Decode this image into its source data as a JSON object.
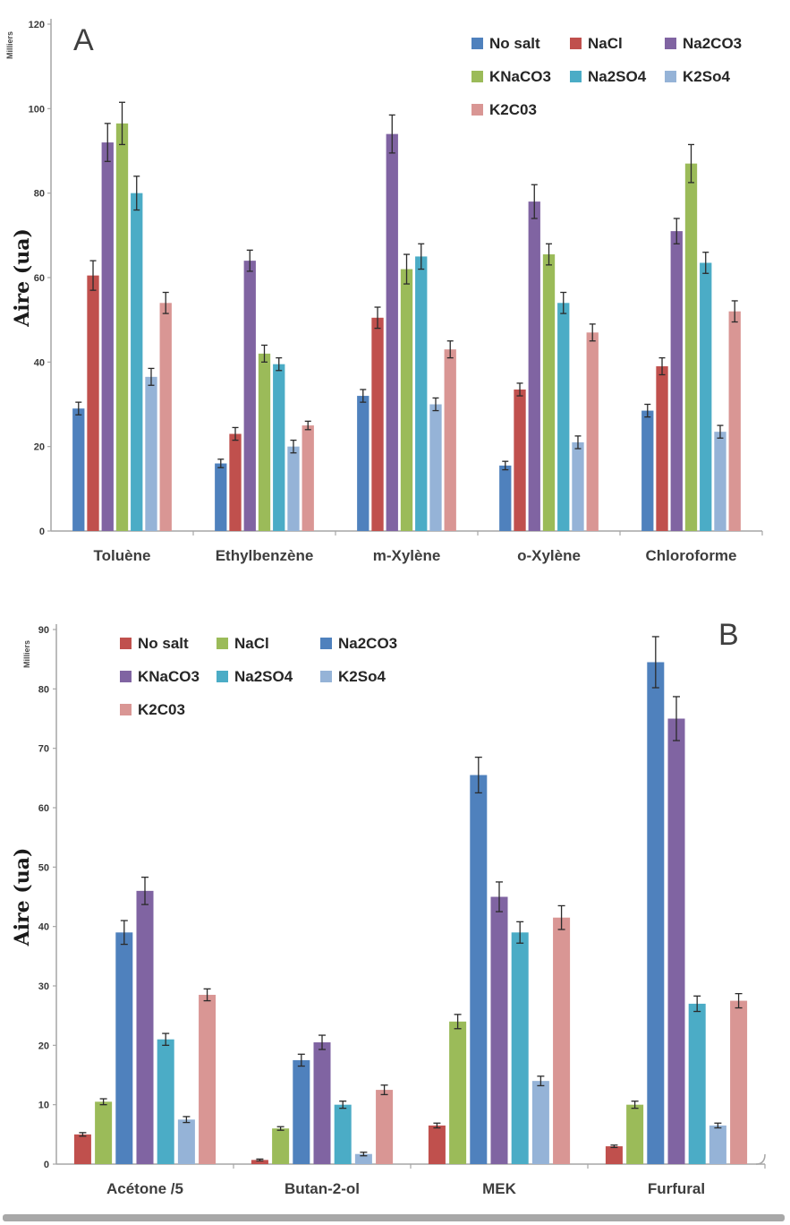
{
  "figure": {
    "panel_a_label": "A",
    "panel_b_label": "B",
    "bottom_bar_color": "#a8a8a8"
  },
  "chart_data": [
    {
      "type": "bar",
      "panel_label": "A",
      "title": "",
      "ylabel": "Aire (ua)",
      "y_units_label": "Milliers",
      "xlabel": "",
      "ylim": [
        0,
        120
      ],
      "ytick_step": 20,
      "grid": false,
      "error_bars": true,
      "legend_position": "top-right",
      "categories": [
        "Toluène",
        "Ethylbenzène",
        "m-Xylène",
        "o-Xylène",
        "Chloroforme"
      ],
      "series": [
        {
          "name": "No salt",
          "color": "#4F81BD",
          "values": [
            29,
            16,
            32,
            15.5,
            28.5
          ],
          "errors": [
            1.5,
            1,
            1.5,
            1,
            1.5
          ]
        },
        {
          "name": "NaCl",
          "color": "#C0504D",
          "values": [
            60.5,
            23,
            50.5,
            33.5,
            39
          ],
          "errors": [
            3.5,
            1.5,
            2.5,
            1.5,
            2
          ]
        },
        {
          "name": "Na2CO3",
          "color": "#8064A2",
          "values": [
            92,
            64,
            94,
            78,
            71
          ],
          "errors": [
            4.5,
            2.5,
            4.5,
            4,
            3
          ]
        },
        {
          "name": "KNaCO3",
          "color": "#9BBB59",
          "values": [
            96.5,
            42,
            62,
            65.5,
            87
          ],
          "errors": [
            5,
            2,
            3.5,
            2.5,
            4.5
          ]
        },
        {
          "name": "Na2SO4",
          "color": "#4BACC6",
          "values": [
            80,
            39.5,
            65,
            54,
            63.5
          ],
          "errors": [
            4,
            1.5,
            3,
            2.5,
            2.5
          ]
        },
        {
          "name": "K2So4",
          "color": "#95B3D7",
          "values": [
            36.5,
            20,
            30,
            21,
            23.5
          ],
          "errors": [
            2,
            1.5,
            1.5,
            1.5,
            1.5
          ]
        },
        {
          "name": "K2C03",
          "color": "#D99694",
          "values": [
            54,
            25,
            43,
            47,
            52
          ],
          "errors": [
            2.5,
            1,
            2,
            2,
            2.5
          ]
        }
      ]
    },
    {
      "type": "bar",
      "panel_label": "B",
      "title": "",
      "ylabel": "Aire (ua)",
      "y_units_label": "Milliers",
      "xlabel": "",
      "ylim": [
        0,
        90
      ],
      "ytick_step": 10,
      "grid": false,
      "error_bars": true,
      "legend_position": "top-left",
      "categories": [
        "Acétone /5",
        "Butan-2-ol",
        "MEK",
        "Furfural"
      ],
      "series": [
        {
          "name": "No salt",
          "color": "#C0504D",
          "values": [
            5,
            0.7,
            6.5,
            3
          ],
          "errors": [
            0.3,
            0.15,
            0.4,
            0.2
          ]
        },
        {
          "name": "NaCl",
          "color": "#9BBB59",
          "values": [
            10.5,
            6,
            24,
            10
          ],
          "errors": [
            0.5,
            0.3,
            1.2,
            0.6
          ]
        },
        {
          "name": "Na2CO3",
          "color": "#4F81BD",
          "values": [
            39,
            17.5,
            65.5,
            84.5
          ],
          "errors": [
            2,
            1,
            3,
            4.3
          ]
        },
        {
          "name": "KNaCO3",
          "color": "#8064A2",
          "values": [
            46,
            20.5,
            45,
            75
          ],
          "errors": [
            2.3,
            1.2,
            2.5,
            3.7
          ]
        },
        {
          "name": "Na2SO4",
          "color": "#4BACC6",
          "values": [
            21,
            10,
            39,
            27
          ],
          "errors": [
            1,
            0.6,
            1.8,
            1.3
          ]
        },
        {
          "name": "K2So4",
          "color": "#95B3D7",
          "values": [
            7.5,
            1.7,
            14,
            6.5
          ],
          "errors": [
            0.5,
            0.3,
            0.8,
            0.4
          ]
        },
        {
          "name": "K2C03",
          "color": "#D99694",
          "values": [
            28.5,
            12.5,
            41.5,
            27.5
          ],
          "errors": [
            1,
            0.8,
            2,
            1.2
          ]
        }
      ]
    }
  ]
}
